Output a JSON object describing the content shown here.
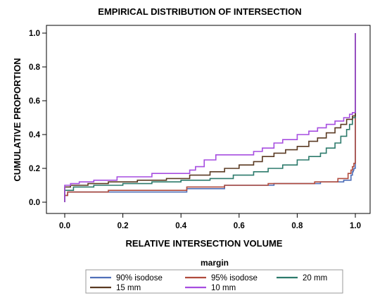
{
  "chart_data": {
    "type": "line",
    "title": "EMPIRICAL DISTRIBUTION OF INTERSECTION",
    "xlabel": "RELATIVE INTERSECTION VOLUME",
    "ylabel": "CUMULATIVE PROPORTION",
    "xlim": [
      0.0,
      1.0
    ],
    "ylim": [
      0.0,
      1.0
    ],
    "xticks": [
      "0.0",
      "0.2",
      "0.4",
      "0.6",
      "0.8",
      "1.0"
    ],
    "yticks": [
      "0.0",
      "0.2",
      "0.4",
      "0.6",
      "0.8",
      "1.0"
    ],
    "grid": false,
    "step": true,
    "legend": {
      "title": "margin",
      "placement": "bottom"
    },
    "series": [
      {
        "name": "90% isodose",
        "color": "#4f6fb8",
        "x": [
          0.0,
          0.0,
          0.01,
          0.15,
          0.42,
          0.55,
          0.72,
          0.88,
          0.96,
          0.985,
          0.99,
          0.993,
          0.995,
          1.0,
          1.0
        ],
        "y": [
          0.0,
          0.04,
          0.06,
          0.06,
          0.08,
          0.1,
          0.11,
          0.12,
          0.13,
          0.16,
          0.18,
          0.19,
          0.2,
          0.21,
          1.0
        ]
      },
      {
        "name": "95% isodose",
        "color": "#b04a3c",
        "x": [
          0.0,
          0.0,
          0.01,
          0.15,
          0.42,
          0.55,
          0.7,
          0.86,
          0.94,
          0.975,
          0.985,
          0.99,
          0.995,
          1.0,
          1.0
        ],
        "y": [
          0.0,
          0.04,
          0.06,
          0.07,
          0.09,
          0.1,
          0.11,
          0.12,
          0.14,
          0.17,
          0.19,
          0.21,
          0.23,
          0.5,
          1.0
        ]
      },
      {
        "name": "20 mm",
        "color": "#2c7a6b",
        "x": [
          0.0,
          0.0,
          0.03,
          0.1,
          0.2,
          0.3,
          0.4,
          0.5,
          0.58,
          0.65,
          0.7,
          0.75,
          0.8,
          0.84,
          0.88,
          0.9,
          0.93,
          0.95,
          0.97,
          0.98,
          0.99,
          1.0,
          1.0
        ],
        "y": [
          0.0,
          0.07,
          0.09,
          0.1,
          0.11,
          0.12,
          0.13,
          0.14,
          0.16,
          0.18,
          0.2,
          0.22,
          0.25,
          0.27,
          0.29,
          0.32,
          0.35,
          0.39,
          0.43,
          0.46,
          0.5,
          0.52,
          1.0
        ]
      },
      {
        "name": "15 mm",
        "color": "#5a3a22",
        "x": [
          0.0,
          0.0,
          0.02,
          0.08,
          0.15,
          0.25,
          0.35,
          0.43,
          0.5,
          0.55,
          0.6,
          0.65,
          0.68,
          0.72,
          0.76,
          0.8,
          0.84,
          0.87,
          0.9,
          0.93,
          0.95,
          0.97,
          0.99,
          1.0,
          1.0
        ],
        "y": [
          0.0,
          0.09,
          0.1,
          0.11,
          0.12,
          0.13,
          0.14,
          0.16,
          0.18,
          0.2,
          0.22,
          0.24,
          0.27,
          0.29,
          0.31,
          0.33,
          0.36,
          0.38,
          0.41,
          0.44,
          0.46,
          0.49,
          0.51,
          0.53,
          1.0
        ]
      },
      {
        "name": "10 mm",
        "color": "#a64de0",
        "x": [
          0.0,
          0.0,
          0.02,
          0.05,
          0.1,
          0.18,
          0.3,
          0.43,
          0.45,
          0.48,
          0.52,
          0.65,
          0.68,
          0.72,
          0.75,
          0.8,
          0.84,
          0.87,
          0.9,
          0.93,
          0.96,
          0.98,
          0.99,
          1.0,
          1.0
        ],
        "y": [
          0.0,
          0.1,
          0.11,
          0.12,
          0.13,
          0.15,
          0.17,
          0.19,
          0.21,
          0.25,
          0.28,
          0.3,
          0.32,
          0.35,
          0.37,
          0.4,
          0.42,
          0.44,
          0.46,
          0.48,
          0.5,
          0.52,
          0.53,
          0.54,
          1.0
        ]
      }
    ]
  }
}
